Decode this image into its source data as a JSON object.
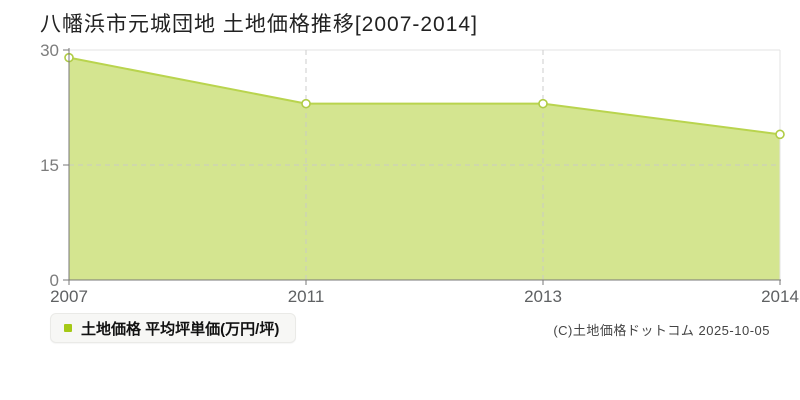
{
  "header": {
    "title": "八幡浜市元城団地 土地価格推移[2007-2014]"
  },
  "legend": {
    "label": "土地価格 平均坪単価(万円/坪)",
    "marker_color": "#a5c916"
  },
  "footer": {
    "copyright": "(C)土地価格ドットコム 2025-10-05"
  },
  "chart_data": {
    "type": "area",
    "title": "八幡浜市元城団地 土地価格推移[2007-2014]",
    "categories": [
      "2007",
      "2011",
      "2013",
      "2014"
    ],
    "series": [
      {
        "name": "土地価格 平均坪単価(万円/坪)",
        "values": [
          29.0,
          23.0,
          23.0,
          19.0
        ]
      }
    ],
    "xlabel": "",
    "ylabel": "万円/坪",
    "ylim": [
      0,
      30
    ],
    "yticks": [
      0,
      15,
      30
    ],
    "grid": {
      "horizontal_dashed_at": [
        15
      ],
      "vertical_dashed_at": [
        "2011",
        "2013"
      ],
      "top_border": true,
      "right_border": true
    },
    "legend_position": "bottom-left",
    "colors": {
      "area_fill": "rgba(183, 212, 70, 0.60)",
      "line": "#b9d44e",
      "marker_fill": "#ffffff",
      "marker_stroke": "#b0cc45",
      "grid_dashed": "#c9c9c9",
      "border_light": "#e3e3e3",
      "axis": "#777777",
      "y_tick_label": "#7c7c7c",
      "x_tick_label": "#5f6163",
      "title_color": "#222222"
    }
  }
}
